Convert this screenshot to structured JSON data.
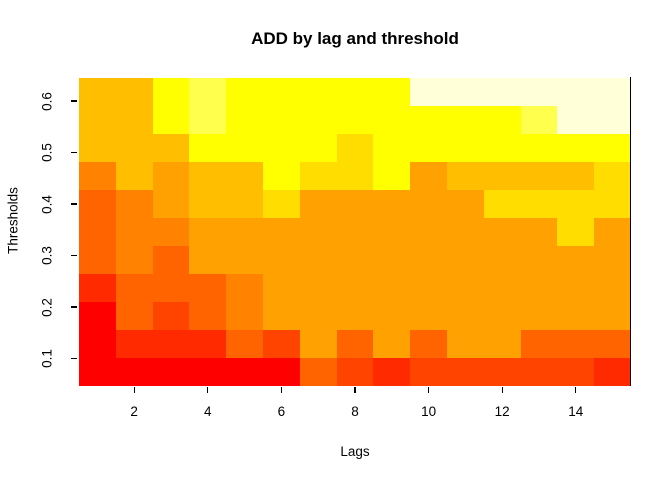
{
  "title": "ADD by lag and threshold",
  "x_axis": {
    "label": "Lags",
    "tick_labels": [
      "2",
      "4",
      "6",
      "8",
      "10",
      "12",
      "14"
    ],
    "tick_values": [
      2,
      4,
      6,
      8,
      10,
      12,
      14
    ]
  },
  "y_axis": {
    "label": "Thresholds",
    "tick_labels": [
      "0.6",
      "0.5",
      "0.4",
      "0.3",
      "0.2",
      "0.1"
    ],
    "tick_values": [
      0.6,
      0.5,
      0.4,
      0.3,
      0.2,
      0.1
    ]
  },
  "chart_data": {
    "type": "heatmap",
    "title": "ADD by lag and threshold",
    "xlabel": "Lags",
    "ylabel": "Thresholds",
    "x_categories_lags": [
      1,
      2,
      3,
      4,
      5,
      6,
      7,
      8,
      9,
      10,
      11,
      12,
      13,
      14,
      15
    ],
    "y_categories_thresholds_top_to_bottom": [
      0.6,
      0.55,
      0.5,
      0.45,
      0.4,
      0.35,
      0.3,
      0.25,
      0.2,
      0.15,
      0.1
    ],
    "x_range_lags": [
      0.5,
      15.5
    ],
    "y_range_thresholds": [
      0.075,
      0.625
    ],
    "grid_on": false,
    "legend": "none",
    "palette_style": "R heat.colors (red to white)",
    "palette": {
      "P1": "#FF0000",
      "P2": "#FF2A00",
      "P3": "#FF4400",
      "P4": "#FF6400",
      "P5": "#FF8300",
      "P6": "#FFA100",
      "P7": "#FFBF00",
      "P8": "#FFDD00",
      "P9": "#FFFF00",
      "P10": "#FFFF4D",
      "P12": "#FFFFD8"
    },
    "grid_rows_top_to_bottom": [
      [
        "P7",
        "P7",
        "P9",
        "P10",
        "P9",
        "P9",
        "P9",
        "P9",
        "P9",
        "P12",
        "P12",
        "P12",
        "P12",
        "P12",
        "P12"
      ],
      [
        "P7",
        "P7",
        "P9",
        "P10",
        "P9",
        "P9",
        "P9",
        "P9",
        "P9",
        "P9",
        "P9",
        "P9",
        "P10",
        "P12",
        "P12"
      ],
      [
        "P7",
        "P7",
        "P7",
        "P9",
        "P9",
        "P9",
        "P9",
        "P8",
        "P9",
        "P9",
        "P9",
        "P9",
        "P9",
        "P9",
        "P9"
      ],
      [
        "P5",
        "P7",
        "P6",
        "P7",
        "P7",
        "P9",
        "P8",
        "P8",
        "P9",
        "P6",
        "P7",
        "P7",
        "P7",
        "P7",
        "P8"
      ],
      [
        "P4",
        "P5",
        "P6",
        "P7",
        "P7",
        "P8",
        "P6",
        "P6",
        "P6",
        "P6",
        "P6",
        "P8",
        "P8",
        "P8",
        "P8"
      ],
      [
        "P4",
        "P5",
        "P5",
        "P6",
        "P6",
        "P6",
        "P6",
        "P6",
        "P6",
        "P6",
        "P6",
        "P6",
        "P6",
        "P8",
        "P6"
      ],
      [
        "P4",
        "P5",
        "P4",
        "P6",
        "P6",
        "P6",
        "P6",
        "P6",
        "P6",
        "P6",
        "P6",
        "P6",
        "P6",
        "P6",
        "P6"
      ],
      [
        "P2",
        "P4",
        "P4",
        "P4",
        "P5",
        "P6",
        "P6",
        "P6",
        "P6",
        "P6",
        "P6",
        "P6",
        "P6",
        "P6",
        "P6"
      ],
      [
        "P1",
        "P4",
        "P3",
        "P4",
        "P5",
        "P6",
        "P6",
        "P6",
        "P6",
        "P6",
        "P6",
        "P6",
        "P6",
        "P6",
        "P6"
      ],
      [
        "P1",
        "P2",
        "P2",
        "P2",
        "P4",
        "P3",
        "P6",
        "P4",
        "P6",
        "P4",
        "P6",
        "P6",
        "P4",
        "P4",
        "P4"
      ],
      [
        "P1",
        "P1",
        "P1",
        "P1",
        "P1",
        "P1",
        "P4",
        "P3",
        "P2",
        "P3",
        "P3",
        "P3",
        "P3",
        "P3",
        "P2"
      ]
    ]
  }
}
